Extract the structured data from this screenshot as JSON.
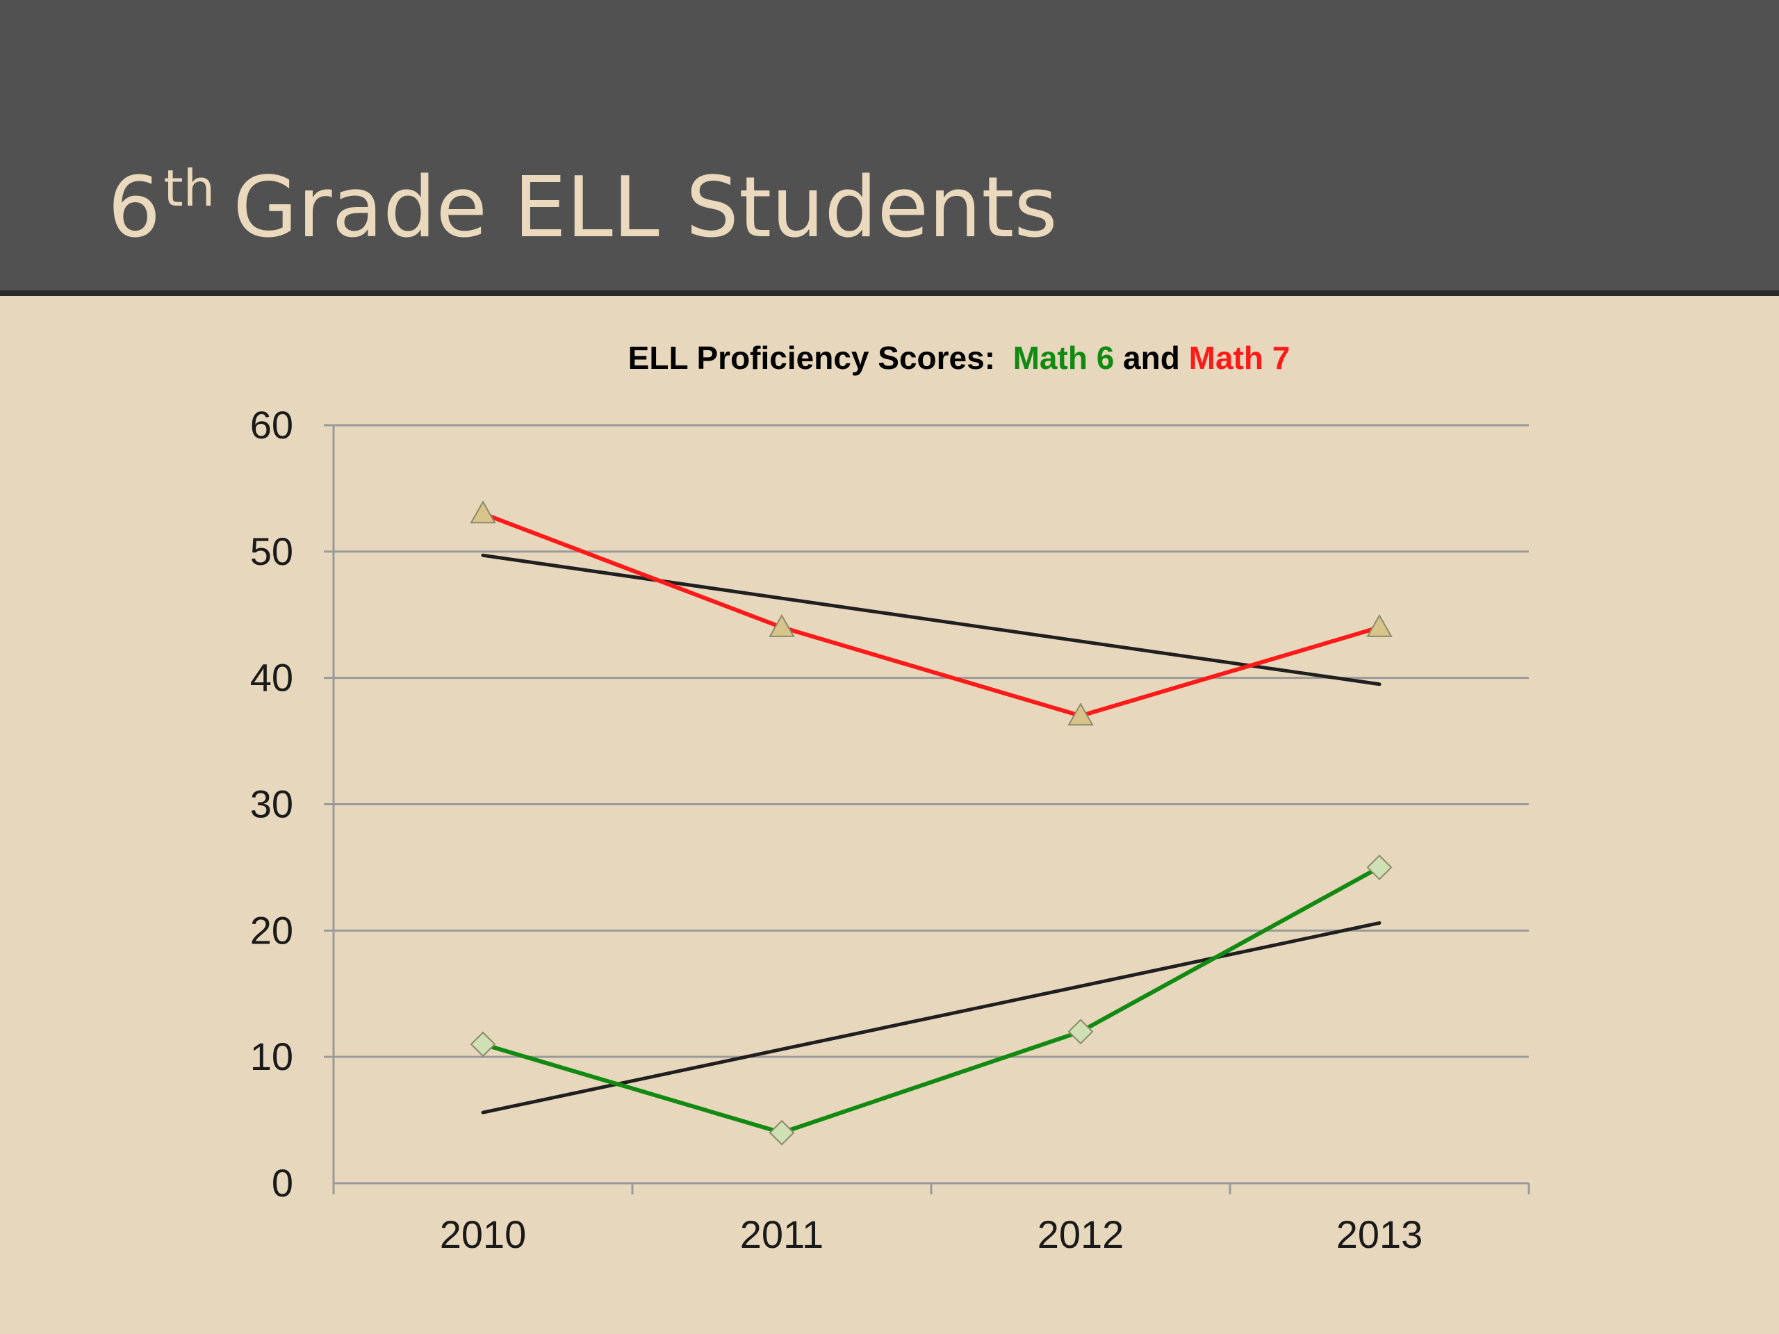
{
  "slide": {
    "title_main": "6",
    "title_sup": "th",
    "title_rest": "Grade ELL Students"
  },
  "chart_data": {
    "type": "line",
    "title_parts": [
      {
        "text": "ELL Proficiency Scores:  ",
        "color": "#000000"
      },
      {
        "text": "Math 6",
        "color": "#128a12"
      },
      {
        "text": " and ",
        "color": "#000000"
      },
      {
        "text": "Math 7",
        "color": "#ff1a1a"
      }
    ],
    "categories": [
      "2010",
      "2011",
      "2012",
      "2013"
    ],
    "ylim": [
      0,
      60
    ],
    "yticks": [
      "0",
      "10",
      "20",
      "30",
      "40",
      "50",
      "60"
    ],
    "grid": true,
    "legend": "none",
    "series": [
      {
        "values": [
          53,
          44,
          37,
          44
        ],
        "color": "#ff1a1a",
        "marker": "triangle",
        "marker_color": "#d8c48a"
      },
      {
        "values": [
          11,
          4,
          12,
          25
        ],
        "color": "#128a12",
        "marker": "diamond",
        "marker_color": "#cfe0b4"
      }
    ],
    "trendlines": [
      {
        "start": 49.7,
        "end": 39.5,
        "color": "#1f1f1f"
      },
      {
        "start": 5.6,
        "end": 20.6,
        "color": "#1f1f1f"
      }
    ]
  }
}
